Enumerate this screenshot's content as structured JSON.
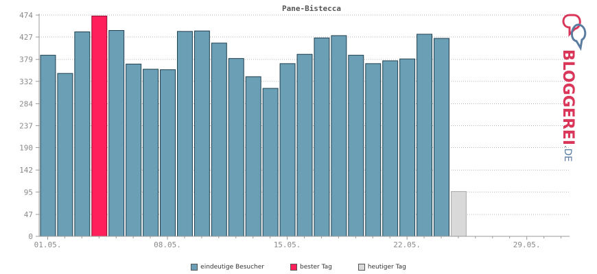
{
  "chart_data": {
    "type": "bar",
    "title": "Pane-Bistecca",
    "xlabel": "",
    "ylabel": "",
    "ylim": [
      0,
      474
    ],
    "yticks": [
      "0",
      "47",
      "95",
      "142",
      "190",
      "237",
      "284",
      "332",
      "379",
      "427",
      "474"
    ],
    "xtick_labels": [
      "01.05.",
      "08.05.",
      "15.05.",
      "22.05.",
      "29.05."
    ],
    "xtick_days": [
      1,
      8,
      15,
      22,
      29
    ],
    "days": [
      1,
      2,
      3,
      4,
      5,
      6,
      7,
      8,
      9,
      10,
      11,
      12,
      13,
      14,
      15,
      16,
      17,
      18,
      19,
      20,
      21,
      22,
      23,
      24,
      25,
      26,
      27,
      28,
      29,
      30,
      31
    ],
    "values": [
      388,
      349,
      438,
      472,
      441,
      369,
      358,
      357,
      439,
      440,
      414,
      381,
      342,
      317,
      370,
      390,
      425,
      430,
      388,
      370,
      376,
      380,
      433,
      424,
      96,
      null,
      null,
      null,
      null,
      null,
      null
    ],
    "kinds": [
      "normal",
      "normal",
      "normal",
      "best",
      "normal",
      "normal",
      "normal",
      "normal",
      "normal",
      "normal",
      "normal",
      "normal",
      "normal",
      "normal",
      "normal",
      "normal",
      "normal",
      "normal",
      "normal",
      "normal",
      "normal",
      "normal",
      "normal",
      "normal",
      "today",
      null,
      null,
      null,
      null,
      null,
      null
    ],
    "series": [
      {
        "name": "eindeutige Besucher",
        "color": "#6a9fb5"
      },
      {
        "name": "bester Tag",
        "color": "#ff1f5a"
      },
      {
        "name": "heutiger Tag",
        "color": "#d9d9d9"
      }
    ],
    "grid": true,
    "legend": "bottom-center"
  },
  "logo": {
    "text": "BLOGGEREI",
    "suffix": ".DE"
  }
}
